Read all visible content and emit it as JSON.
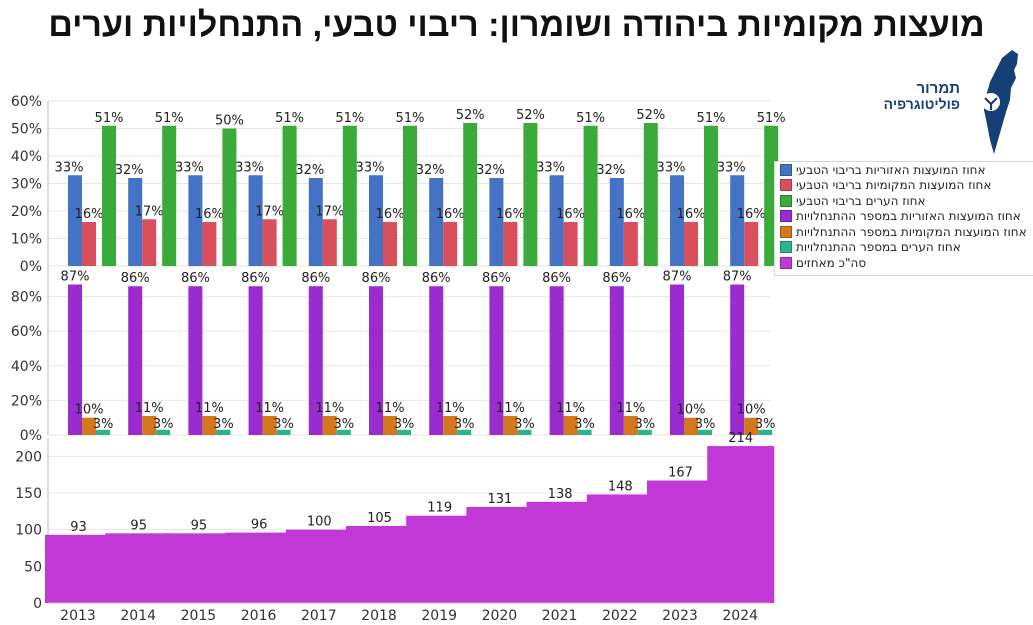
{
  "title": "מועצות מקומיות ביהודה ושומרון: ריבוי טבעי, התנחלויות וערים",
  "logo": {
    "line1": "תמרור",
    "line2": "פוליטוגרפיה"
  },
  "colors": {
    "regional_natural": "#4472c4",
    "local_natural": "#d94f5c",
    "cities_natural": "#3aaa3a",
    "regional_settlements": "#9a2ccf",
    "local_settlements": "#d4781e",
    "cities_settlements": "#2ab38f",
    "total_from": "#c238d6"
  },
  "chart_data": [
    {
      "type": "bar",
      "categories": [
        "2013",
        "2014",
        "2015",
        "2016",
        "2017",
        "2018",
        "2019",
        "2020",
        "2021",
        "2022",
        "2023",
        "2024"
      ],
      "ylim": [
        0,
        60
      ],
      "yticks": [
        "0%",
        "10%",
        "20%",
        "30%",
        "40%",
        "50%",
        "60%"
      ],
      "series": [
        {
          "name": "אחוז המועצות האזוריות בריבוי הטבעי",
          "values": [
            33,
            32,
            33,
            33,
            32,
            33,
            32,
            32,
            33,
            32,
            33,
            33
          ],
          "labels": [
            "33%",
            "32%",
            "33%",
            "33%",
            "32%",
            "33%",
            "32%",
            "32%",
            "33%",
            "32%",
            "33%",
            "33%"
          ]
        },
        {
          "name": "אחוז המועצות המקומיות בריבוי הטבעי",
          "values": [
            16,
            17,
            16,
            17,
            17,
            16,
            16,
            16,
            16,
            16,
            16,
            16
          ],
          "labels": [
            "16%",
            "17%",
            "16%",
            "17%",
            "17%",
            "16%",
            "16%",
            "16%",
            "16%",
            "16%",
            "16%",
            "16%"
          ]
        },
        {
          "name": "אחוז הערים בריבוי הטבעי",
          "values": [
            51,
            51,
            50,
            51,
            51,
            51,
            52,
            52,
            51,
            52,
            51,
            51
          ],
          "labels": [
            "51%",
            "51%",
            "50%",
            "51%",
            "51%",
            "51%",
            "52%",
            "52%",
            "51%",
            "52%",
            "51%",
            "51%"
          ]
        }
      ]
    },
    {
      "type": "bar",
      "categories": [
        "2013",
        "2014",
        "2015",
        "2016",
        "2017",
        "2018",
        "2019",
        "2020",
        "2021",
        "2022",
        "2023",
        "2024"
      ],
      "ylim": [
        0,
        100
      ],
      "yticks": [
        "0%",
        "20%",
        "40%",
        "60%",
        "80%"
      ],
      "series": [
        {
          "name": "אחוז המועצות האזוריות במספר ההתנחלויות",
          "values": [
            87,
            86,
            86,
            86,
            86,
            86,
            86,
            86,
            86,
            86,
            87,
            87
          ],
          "labels": [
            "87%",
            "86%",
            "86%",
            "86%",
            "86%",
            "86%",
            "86%",
            "86%",
            "86%",
            "86%",
            "87%",
            "87%"
          ]
        },
        {
          "name": "אחוז המועצות המקומיות במספר ההתנחלויות",
          "values": [
            10,
            11,
            11,
            11,
            11,
            11,
            11,
            11,
            11,
            11,
            10,
            10
          ],
          "labels": [
            "10%",
            "11%",
            "11%",
            "11%",
            "11%",
            "11%",
            "11%",
            "11%",
            "11%",
            "11%",
            "10%",
            "10%"
          ]
        },
        {
          "name": "אחוז הערים במספר ההתנחלויות",
          "values": [
            3,
            3,
            3,
            3,
            3,
            3,
            3,
            3,
            3,
            3,
            3,
            3
          ],
          "labels": [
            "3%",
            "3%",
            "3%",
            "3%",
            "3%",
            "3%",
            "3%",
            "3%",
            "3%",
            "3%",
            "3%",
            "3%"
          ]
        }
      ]
    },
    {
      "type": "bar",
      "categories": [
        "2013",
        "2014",
        "2015",
        "2016",
        "2017",
        "2018",
        "2019",
        "2020",
        "2021",
        "2022",
        "2023",
        "2024"
      ],
      "ylim": [
        0,
        225
      ],
      "yticks": [
        "0",
        "50",
        "100",
        "150",
        "200"
      ],
      "series": [
        {
          "name": "סה\"כ מאחזים",
          "values": [
            93,
            95,
            95,
            96,
            100,
            105,
            119,
            131,
            138,
            148,
            167,
            214
          ],
          "labels": [
            "93",
            "95",
            "95",
            "96",
            "100",
            "105",
            "119",
            "131",
            "138",
            "148",
            "167",
            "214"
          ]
        }
      ]
    }
  ],
  "legend_order": [
    [
      "chart_data",
      0,
      0
    ],
    [
      "chart_data",
      0,
      1
    ],
    [
      "chart_data",
      0,
      2
    ],
    [
      "chart_data",
      1,
      0
    ],
    [
      "chart_data",
      1,
      1
    ],
    [
      "chart_data",
      1,
      2
    ],
    [
      "chart_data",
      2,
      0
    ]
  ]
}
